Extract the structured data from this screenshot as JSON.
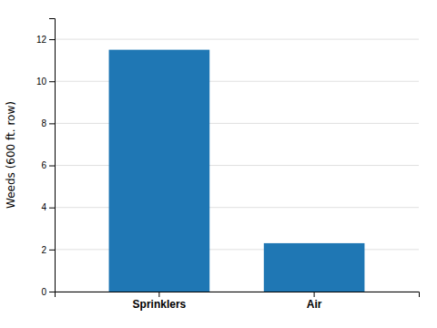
{
  "chart_data": {
    "type": "bar",
    "categories": [
      "Sprinklers",
      "Air"
    ],
    "values": [
      11.5,
      2.3
    ],
    "ylabel": "Weeds (600 ft. row)",
    "ylim": [
      0,
      13
    ],
    "yticks": [
      0,
      2,
      4,
      6,
      8,
      10,
      12
    ],
    "grid": true
  }
}
